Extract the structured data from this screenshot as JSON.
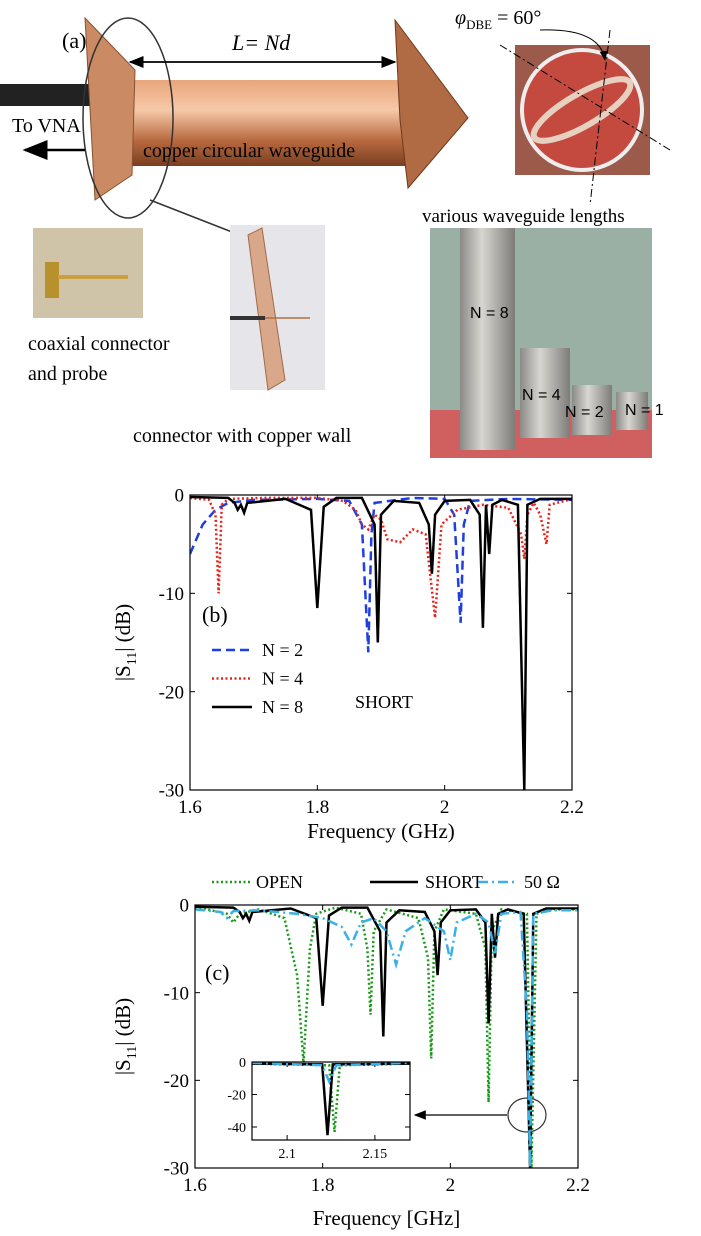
{
  "panel_a": {
    "label": "(a)",
    "length_label": "L= Nd",
    "vna": "To VNA",
    "waveguide": "copper circular waveguide",
    "angle_symbol": "φ",
    "angle_sub": "DBE",
    "angle_rest": " = 60°",
    "lengths": "various waveguide lengths",
    "coax_1": "coaxial connector",
    "coax_2": "and probe",
    "wall": "connector with copper wall",
    "photo_labels": [
      "N = 8",
      "N = 4",
      "N = 2",
      "N = 1"
    ]
  },
  "chart_data": [
    {
      "type": "line",
      "xlabel": "Frequency (GHz)",
      "ylabel_parts": [
        "|S",
        "11",
        "| (dB)"
      ],
      "annotations": [
        "(b)",
        "SHORT"
      ],
      "legend": "middle left",
      "xlim": [
        1.6,
        2.2
      ],
      "xticks": [
        1.6,
        1.8,
        2,
        2.2
      ],
      "ylim": [
        -30,
        0
      ],
      "yticks": [
        -30,
        -20,
        -10,
        0
      ],
      "series": [
        {
          "name": "N = 2",
          "color": "#1f3fe0",
          "style": "dashed",
          "x": [
            1.6,
            1.62,
            1.64,
            1.66,
            1.7,
            1.8,
            1.85,
            1.87,
            1.88,
            1.885,
            1.89,
            1.95,
            2.0,
            2.015,
            2.025,
            2.03,
            2.04,
            2.1,
            2.2
          ],
          "values": [
            -6,
            -3,
            -1.5,
            -0.8,
            -0.5,
            -0.4,
            -0.6,
            -3,
            -16,
            -4,
            -0.8,
            -0.3,
            -0.4,
            -2,
            -13,
            -3,
            -0.6,
            -0.4,
            -0.5
          ]
        },
        {
          "name": "N = 4",
          "color": "#e8231c",
          "style": "dotted",
          "x": [
            1.6,
            1.63,
            1.64,
            1.645,
            1.65,
            1.66,
            1.72,
            1.8,
            1.84,
            1.86,
            1.87,
            1.88,
            1.89,
            1.9,
            1.91,
            1.93,
            1.95,
            1.97,
            1.985,
            1.995,
            2.02,
            2.06,
            2.1,
            2.12,
            2.125,
            2.13,
            2.14,
            2.15,
            2.16,
            2.165,
            2.2
          ],
          "values": [
            -0.3,
            -0.5,
            -2,
            -10,
            -1,
            -0.4,
            -0.3,
            -0.3,
            -0.6,
            -1.5,
            -3,
            -3.5,
            -2,
            -2.5,
            -4.5,
            -4.8,
            -3.5,
            -4,
            -12.5,
            -3,
            -1.5,
            -1,
            -1.3,
            -4,
            -6.5,
            -2,
            -0.8,
            -2,
            -5,
            -1,
            -0.4
          ]
        },
        {
          "name": "N = 8",
          "color": "#000000",
          "style": "solid",
          "x": [
            1.6,
            1.66,
            1.67,
            1.675,
            1.68,
            1.685,
            1.69,
            1.75,
            1.79,
            1.8,
            1.81,
            1.83,
            1.87,
            1.89,
            1.895,
            1.9,
            1.92,
            1.96,
            1.975,
            1.98,
            1.985,
            2.0,
            2.04,
            2.055,
            2.06,
            2.065,
            2.07,
            2.075,
            2.09,
            2.115,
            2.125,
            2.13,
            2.15,
            2.2
          ],
          "values": [
            -0.2,
            -0.3,
            -0.8,
            -1.5,
            -1,
            -1.8,
            -0.8,
            -0.4,
            -1.5,
            -11.5,
            -1.2,
            -0.3,
            -0.3,
            -3,
            -15,
            -2,
            -0.6,
            -0.8,
            -3,
            -8,
            -2,
            -0.6,
            -0.5,
            -2,
            -13.5,
            -1,
            -6,
            -1,
            -0.5,
            -1,
            -30,
            -1,
            -0.4,
            -0.4
          ]
        }
      ]
    },
    {
      "type": "line",
      "xlabel": "Frequency [GHz]",
      "ylabel_parts": [
        "|S",
        "11",
        "| (dB)"
      ],
      "annotations": [
        "(c)"
      ],
      "legend": "top outside",
      "xlim": [
        1.6,
        2.2
      ],
      "xticks": [
        1.6,
        1.8,
        2,
        2.2
      ],
      "ylim": [
        -30,
        0
      ],
      "yticks": [
        -30,
        -20,
        -10,
        0
      ],
      "series": [
        {
          "name": "OPEN",
          "color": "#1a9a1a",
          "style": "dotted",
          "x": [
            1.6,
            1.65,
            1.66,
            1.67,
            1.7,
            1.74,
            1.76,
            1.77,
            1.78,
            1.79,
            1.82,
            1.86,
            1.87,
            1.875,
            1.88,
            1.9,
            1.95,
            1.965,
            1.97,
            1.975,
            1.99,
            2.04,
            2.055,
            2.06,
            2.065,
            2.08,
            2.12,
            2.127,
            2.135,
            2.16,
            2.2
          ],
          "values": [
            -0.2,
            -1,
            -2,
            -1,
            -0.5,
            -1.5,
            -8,
            -18,
            -5,
            -1,
            -0.3,
            -1,
            -5,
            -12.5,
            -3,
            -0.5,
            -1.5,
            -6,
            -17.5,
            -3,
            -0.5,
            -1,
            -5,
            -22.5,
            -3,
            -0.5,
            -1,
            -30,
            -1,
            -0.5,
            -0.5
          ]
        },
        {
          "name": "SHORT",
          "color": "#000000",
          "style": "solid",
          "x": [
            1.6,
            1.66,
            1.67,
            1.675,
            1.68,
            1.685,
            1.69,
            1.75,
            1.79,
            1.8,
            1.81,
            1.83,
            1.87,
            1.89,
            1.895,
            1.9,
            1.92,
            1.96,
            1.975,
            1.98,
            1.985,
            2.0,
            2.04,
            2.055,
            2.06,
            2.065,
            2.07,
            2.075,
            2.09,
            2.115,
            2.125,
            2.13,
            2.15,
            2.2
          ],
          "values": [
            -0.2,
            -0.3,
            -0.8,
            -1.5,
            -1,
            -1.8,
            -0.8,
            -0.4,
            -1.5,
            -11.5,
            -1.2,
            -0.3,
            -0.3,
            -3,
            -15,
            -2,
            -0.6,
            -0.8,
            -3,
            -8,
            -2,
            -0.6,
            -0.5,
            -2,
            -13.5,
            -1,
            -6,
            -1,
            -0.5,
            -1,
            -30,
            -1,
            -0.4,
            -0.4
          ]
        },
        {
          "name": "50 Ω",
          "color": "#3ab0e8",
          "style": "dashdot",
          "x": [
            1.6,
            1.64,
            1.65,
            1.66,
            1.7,
            1.76,
            1.8,
            1.83,
            1.845,
            1.86,
            1.88,
            1.9,
            1.915,
            1.93,
            1.96,
            1.99,
            2.0,
            2.01,
            2.04,
            2.06,
            2.07,
            2.08,
            2.11,
            2.12,
            2.125,
            2.13,
            2.16,
            2.2
          ],
          "values": [
            -0.5,
            -0.8,
            -1.5,
            -0.7,
            -0.6,
            -1,
            -1.5,
            -2.5,
            -4.5,
            -2,
            -1.5,
            -3,
            -6.8,
            -3,
            -1.5,
            -3,
            -6.3,
            -2,
            -1,
            -2,
            -5.5,
            -1,
            -0.8,
            -12,
            -30,
            -1,
            -0.6,
            -0.6
          ]
        }
      ]
    },
    {
      "type": "line",
      "legend": "none",
      "xlim": [
        2.08,
        2.17
      ],
      "xticks": [
        2.1,
        2.15
      ],
      "ylim": [
        -48,
        0
      ],
      "yticks": [
        -40,
        -20,
        0
      ],
      "series": [
        {
          "color": "#1a9a1a",
          "style": "dotted",
          "x": [
            2.08,
            2.124,
            2.127,
            2.13,
            2.17
          ],
          "values": [
            -1,
            -2,
            -43,
            -2,
            -1
          ]
        },
        {
          "color": "#000000",
          "style": "solid",
          "x": [
            2.08,
            2.12,
            2.123,
            2.126,
            2.17
          ],
          "values": [
            -1,
            -1.5,
            -45,
            -1.5,
            -1
          ]
        },
        {
          "color": "#3ab0e8",
          "style": "dashdot",
          "x": [
            2.08,
            2.12,
            2.124,
            2.128,
            2.17
          ],
          "values": [
            -0.5,
            -2,
            -12,
            -2,
            -0.5
          ]
        }
      ]
    }
  ]
}
